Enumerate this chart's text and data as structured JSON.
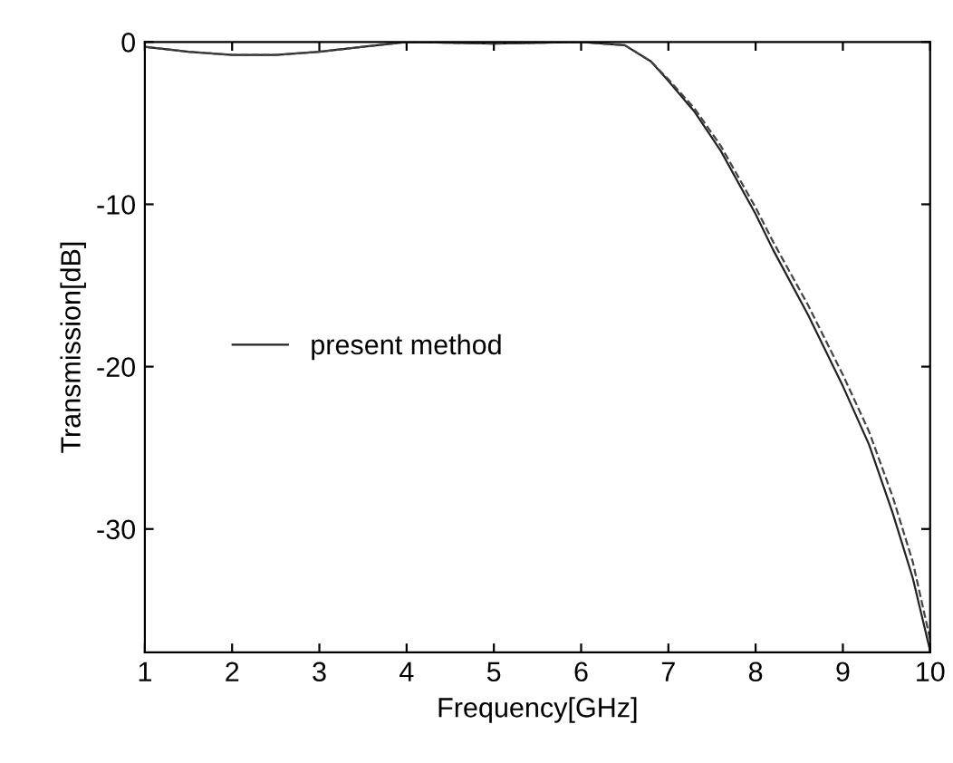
{
  "chart_data": {
    "type": "line",
    "xlabel": "Frequency[GHz]",
    "ylabel": "Transmission[dB]",
    "xlim": [
      1,
      10
    ],
    "ylim": [
      -37.6,
      0
    ],
    "xticks": [
      1,
      2,
      3,
      4,
      5,
      6,
      7,
      8,
      9,
      10
    ],
    "yticks": [
      0,
      -10,
      -20,
      -30
    ],
    "grid": false,
    "legend": "left",
    "marker": "none",
    "series": [
      {
        "name": "present method",
        "color": "#222222",
        "line_style": "solid",
        "x": [
          1,
          1.5,
          2,
          2.5,
          3,
          3.5,
          4,
          5,
          6,
          6.5,
          6.8,
          7,
          7.3,
          7.6,
          8,
          8.2,
          8.6,
          9,
          9.3,
          9.57,
          9.8,
          10
        ],
        "values": [
          -0.3,
          -0.6,
          -0.8,
          -0.8,
          -0.6,
          -0.3,
          0,
          -0.1,
          0,
          -0.2,
          -1.2,
          -2.4,
          -4.3,
          -6.7,
          -10.6,
          -12.8,
          -16.8,
          -21.2,
          -24.8,
          -29,
          -33,
          -37.5
        ]
      },
      {
        "color": "#444444",
        "line_style": "dashed",
        "x": [
          1,
          1.5,
          2,
          2.5,
          3,
          3.5,
          4,
          5,
          6,
          6.5,
          6.8,
          7,
          7.3,
          7.6,
          8,
          8.2,
          8.6,
          9,
          9.3,
          9.57,
          9.8,
          10
        ],
        "values": [
          -0.3,
          -0.6,
          -0.8,
          -0.8,
          -0.6,
          -0.3,
          0,
          -0.1,
          0,
          -0.2,
          -1.2,
          -2.3,
          -4.1,
          -6.4,
          -10.2,
          -12.3,
          -16.2,
          -20.5,
          -24,
          -28,
          -32,
          -36.8
        ]
      }
    ]
  }
}
